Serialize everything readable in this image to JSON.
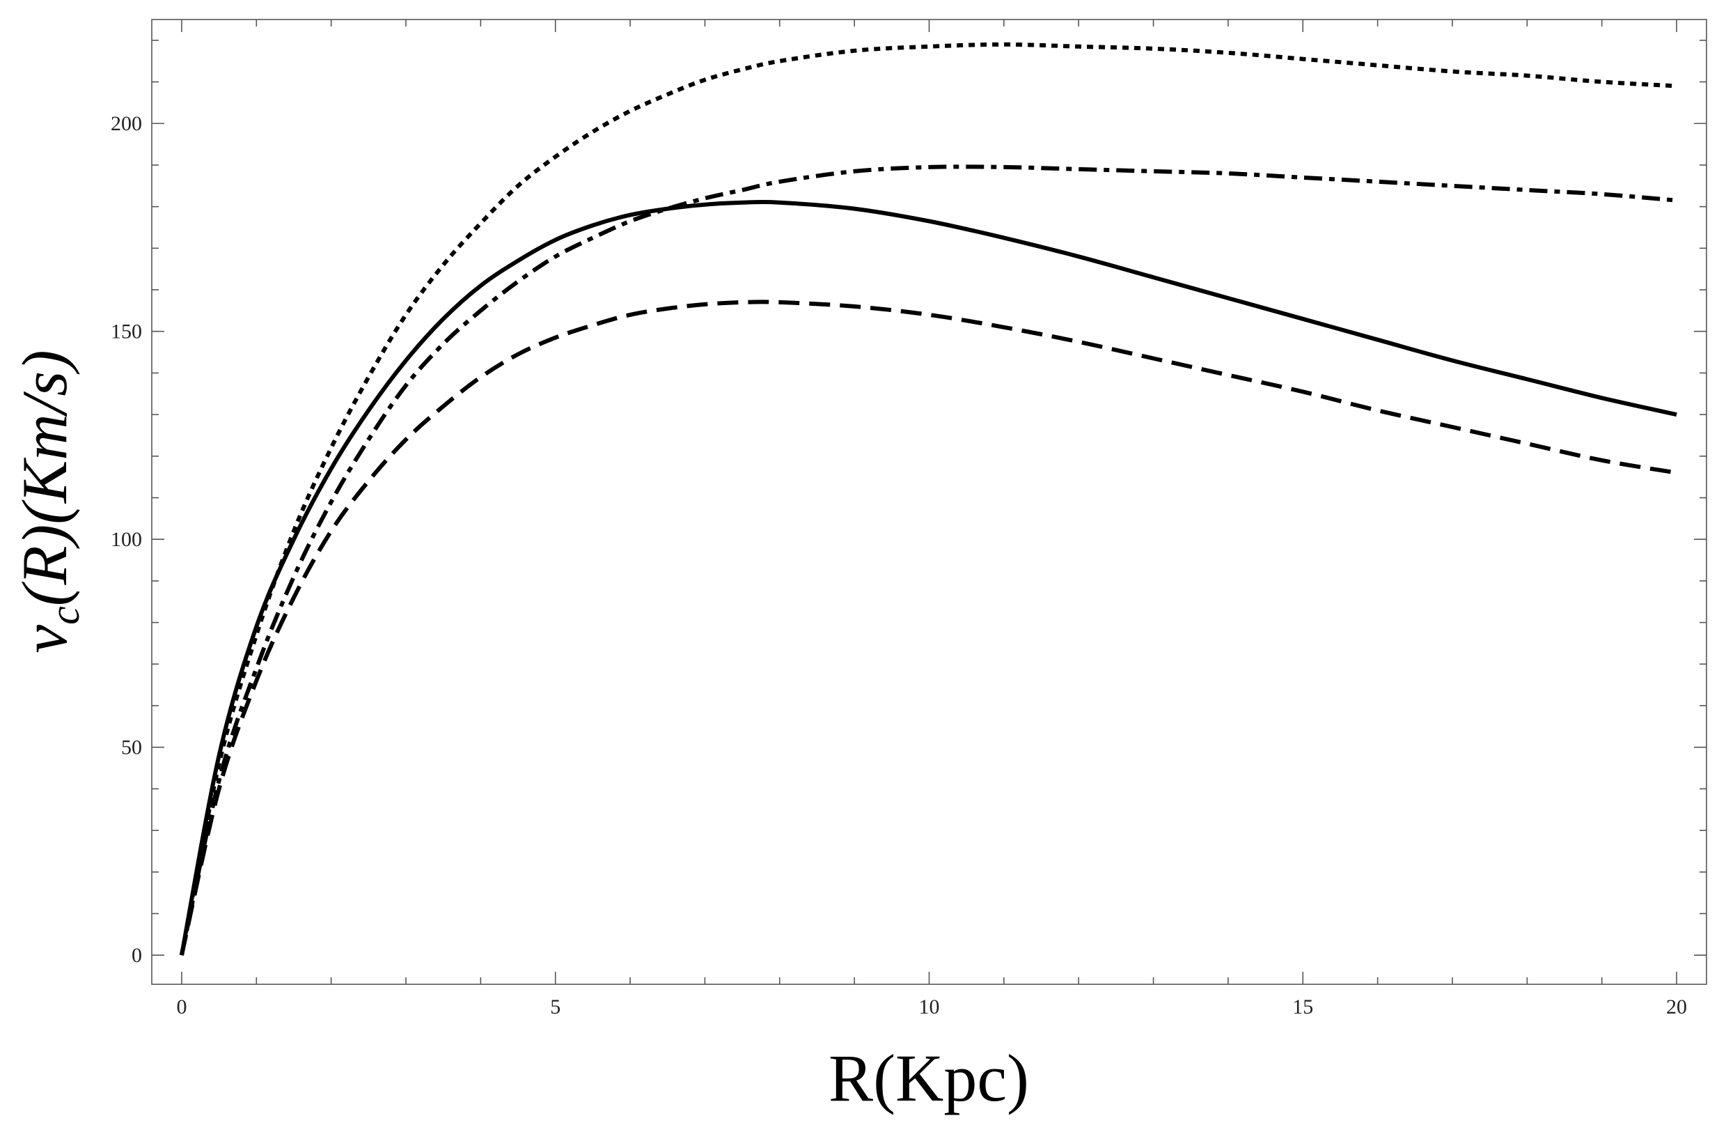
{
  "chart_data": {
    "type": "line",
    "xlabel": "R(Kpc)",
    "ylabel": "v_c(R)(Km/s)",
    "ylabel_parts": {
      "v": "v",
      "sub": "c",
      "rest": "(R)(Km/s)"
    },
    "xlim": [
      -0.4,
      20.4
    ],
    "ylim": [
      -7,
      225
    ],
    "x_ticks_major": [
      0,
      5,
      10,
      15,
      20
    ],
    "x_tick_labels": [
      "0",
      "5",
      "10",
      "15",
      "20"
    ],
    "y_ticks_major": [
      0,
      50,
      100,
      150,
      200
    ],
    "y_tick_labels": [
      "0",
      "50",
      "100",
      "150",
      "200"
    ],
    "grid": false,
    "legend": "none",
    "series": [
      {
        "style": "solid",
        "x": [
          0,
          0.5,
          1,
          1.5,
          2,
          2.5,
          3,
          3.5,
          4,
          4.5,
          5,
          5.5,
          6,
          6.5,
          7,
          7.5,
          8,
          9,
          10,
          11,
          12,
          13,
          14,
          15,
          16,
          17,
          18,
          19,
          20
        ],
        "y": [
          0,
          48,
          79,
          100,
          117,
          131,
          143,
          153,
          161,
          167,
          172,
          175.5,
          178,
          179.5,
          180.5,
          181,
          181,
          179.5,
          176.5,
          172.5,
          168,
          163,
          158,
          153,
          148,
          143,
          138.5,
          134,
          130
        ]
      },
      {
        "style": "dotted",
        "x": [
          0,
          0.5,
          1,
          1.5,
          2,
          2.5,
          3,
          3.5,
          4,
          4.5,
          5,
          5.5,
          6,
          6.5,
          7,
          7.5,
          8,
          9,
          10,
          11,
          12,
          13,
          14,
          15,
          16,
          17,
          18,
          19,
          20
        ],
        "y": [
          0,
          46,
          77,
          102,
          122,
          139,
          154,
          166,
          176,
          185,
          192,
          198,
          203,
          207,
          210.5,
          213,
          215,
          217.5,
          218.5,
          219,
          218.5,
          218,
          217,
          215.5,
          214,
          212.5,
          211.5,
          210,
          209
        ]
      },
      {
        "style": "dashdot",
        "x": [
          0,
          0.5,
          1,
          1.5,
          2,
          2.5,
          3,
          3.5,
          4,
          4.5,
          5,
          5.5,
          6,
          6.5,
          7,
          7.5,
          8,
          9,
          10,
          11,
          12,
          13,
          14,
          15,
          16,
          17,
          18,
          19,
          20
        ],
        "y": [
          0,
          42,
          69,
          91,
          109,
          124,
          137,
          147,
          155,
          162,
          168,
          172.5,
          176.5,
          179.5,
          182,
          184,
          186,
          188.5,
          189.5,
          189.5,
          189,
          188.5,
          188,
          187,
          186,
          185,
          184,
          183,
          181.5
        ]
      },
      {
        "style": "dashed",
        "x": [
          0,
          0.5,
          1,
          1.5,
          2,
          2.5,
          3,
          3.5,
          4,
          4.5,
          5,
          5.5,
          6,
          6.5,
          7,
          7.5,
          8,
          9,
          10,
          11,
          12,
          13,
          14,
          15,
          16,
          17,
          18,
          19,
          20
        ],
        "y": [
          0,
          40,
          66,
          86,
          102,
          114,
          124,
          132,
          139,
          144.5,
          148.5,
          151.5,
          154,
          155.5,
          156.5,
          157,
          157,
          156,
          154,
          151,
          147.5,
          143.5,
          139.5,
          135.5,
          131,
          127,
          123,
          119,
          116
        ]
      }
    ]
  }
}
